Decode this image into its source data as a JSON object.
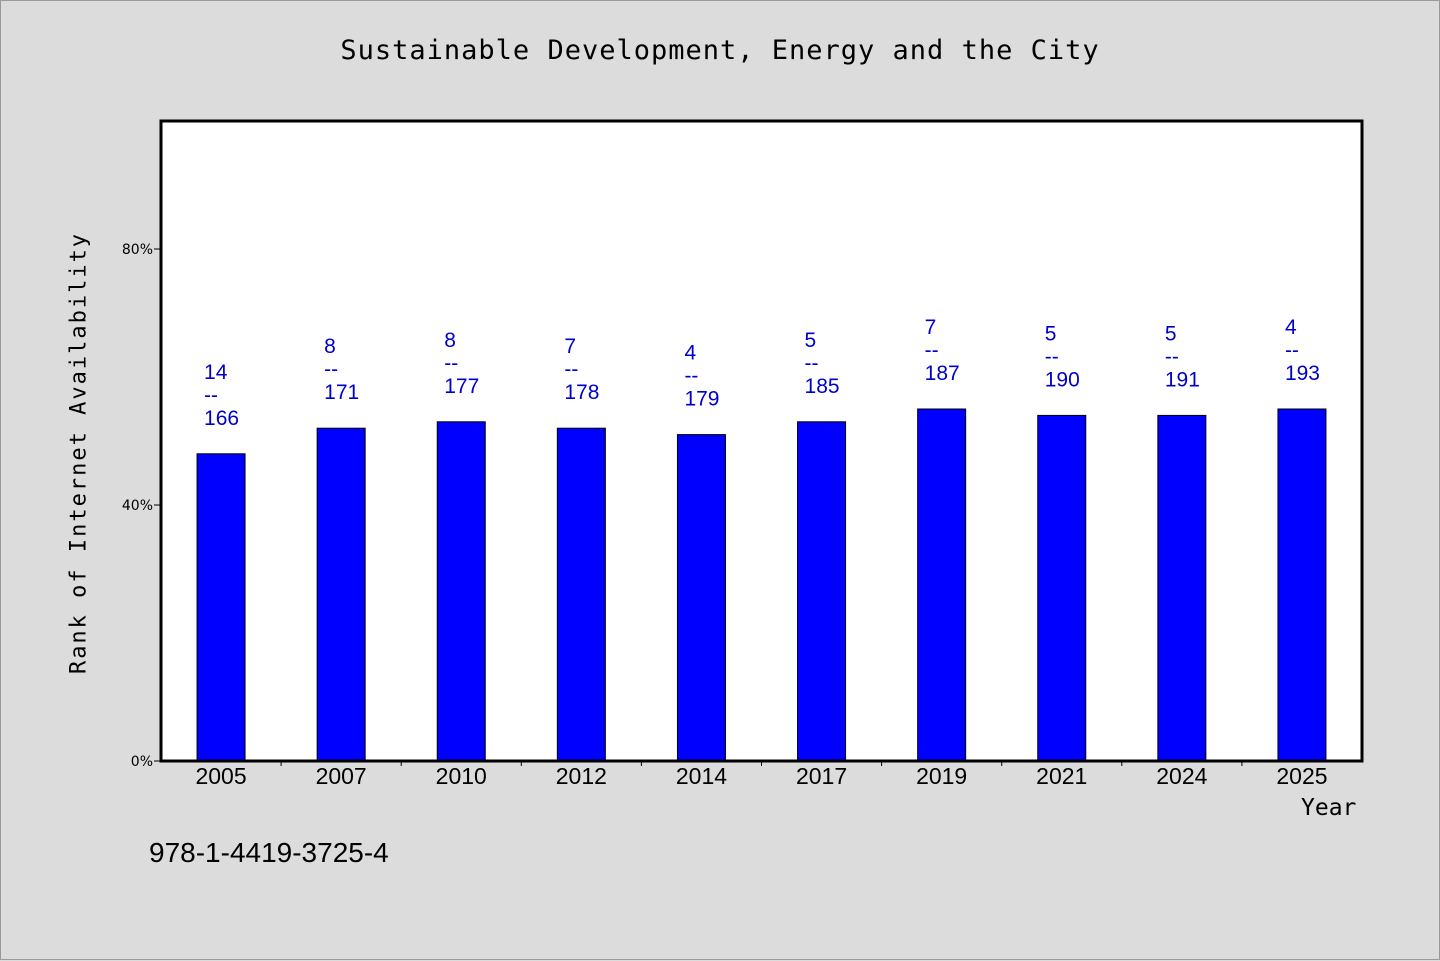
{
  "chart_data": {
    "type": "bar",
    "title": "Sustainable Development, Energy and the City",
    "xlabel": "Year",
    "ylabel": "Rank of Internet Availability",
    "categories": [
      "2005",
      "2007",
      "2010",
      "2012",
      "2014",
      "2017",
      "2019",
      "2021",
      "2024",
      "2025"
    ],
    "values": [
      48,
      52,
      53,
      52,
      51,
      53,
      55,
      54,
      54,
      55
    ],
    "data_labels": [
      {
        "rank": "14",
        "sep": "--",
        "total": "166"
      },
      {
        "rank": "8",
        "sep": "--",
        "total": "171"
      },
      {
        "rank": "8",
        "sep": "--",
        "total": "177"
      },
      {
        "rank": "7",
        "sep": "--",
        "total": "178"
      },
      {
        "rank": "4",
        "sep": "--",
        "total": "179"
      },
      {
        "rank": "5",
        "sep": "--",
        "total": "185"
      },
      {
        "rank": "7",
        "sep": "--",
        "total": "187"
      },
      {
        "rank": "5",
        "sep": "--",
        "total": "190"
      },
      {
        "rank": "5",
        "sep": "--",
        "total": "191"
      },
      {
        "rank": "4",
        "sep": "--",
        "total": "193"
      }
    ],
    "yticks": [
      0,
      40,
      80
    ],
    "ytick_labels": [
      "0%",
      "40%",
      "80%"
    ],
    "ylim": [
      0,
      100
    ],
    "grid": false,
    "legend": "none",
    "bar_color": "#0000ff",
    "label_color": "#0000cc"
  },
  "footer": {
    "isbn": "978-1-4419-3725-4"
  },
  "colors": {
    "background": "#dcdcdc",
    "plot_background": "#ffffff"
  }
}
